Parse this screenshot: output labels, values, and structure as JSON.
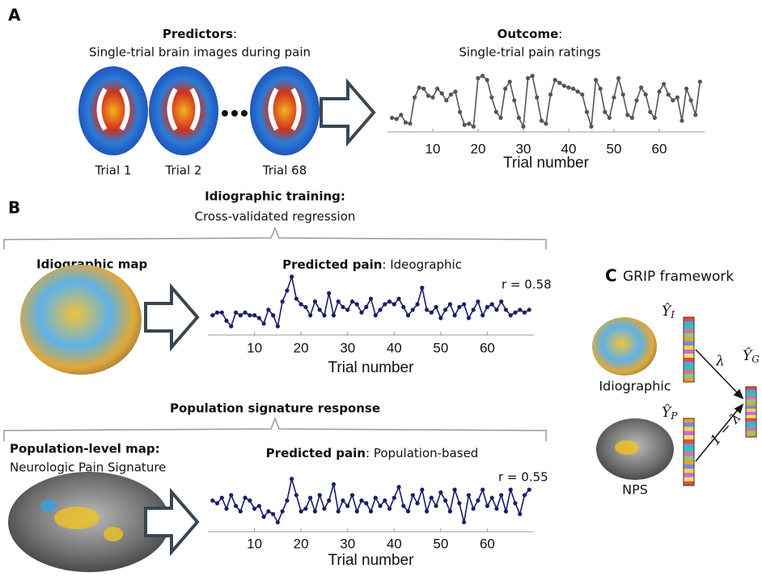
{
  "panels": {
    "a": {
      "label": "A",
      "predictors": {
        "title": "Predictors",
        "suffix": ":",
        "subtitle": "Single-trial brain images during pain"
      },
      "trials": [
        "Trial 1",
        "Trial 2",
        "Trial 68"
      ]
    },
    "b": {
      "label": "B",
      "training": {
        "title": "Idiographic training:",
        "subtitle": "Cross-validated regression"
      },
      "idiographic_map": "Idiographic map",
      "population": {
        "title": "Population signature response"
      },
      "population_map": {
        "title": "Population-level map:",
        "subtitle": "Neurologic Pain Signature"
      }
    },
    "c": {
      "label": "C",
      "title": "GRIP framework",
      "idiographic": "Idiographic",
      "nps": "NPS",
      "y_i": {
        "symbol": "Ŷ",
        "sub": "I"
      },
      "y_p": {
        "symbol": "Ŷ",
        "sub": "P"
      },
      "y_g": {
        "symbol": "Ŷ",
        "sub": "G"
      },
      "lambda": "λ",
      "one_minus_lambda": "1 − λ"
    }
  },
  "chart_data": [
    {
      "type": "line",
      "title": "Outcome",
      "title_suffix": ":",
      "subtitle": "Single-trial pain ratings",
      "x": [
        1,
        2,
        3,
        4,
        5,
        6,
        7,
        8,
        9,
        10,
        11,
        12,
        13,
        14,
        15,
        16,
        17,
        18,
        19,
        20,
        21,
        22,
        23,
        24,
        25,
        26,
        27,
        28,
        29,
        30,
        31,
        32,
        33,
        34,
        35,
        36,
        37,
        38,
        39,
        40,
        41,
        42,
        43,
        44,
        45,
        46,
        47,
        48,
        49,
        50,
        51,
        52,
        53,
        54,
        55,
        56,
        57,
        58,
        59,
        60,
        61,
        62,
        63,
        64,
        65,
        66,
        67,
        68,
        69
      ],
      "series": [
        {
          "color": "#555555",
          "values": [
            0.2,
            0.18,
            0.25,
            0.12,
            0.1,
            0.55,
            0.72,
            0.7,
            0.58,
            0.55,
            0.7,
            0.62,
            0.5,
            0.6,
            0.65,
            0.3,
            0.08,
            0.1,
            0.05,
            0.88,
            0.92,
            0.85,
            0.55,
            0.3,
            0.2,
            0.7,
            0.82,
            0.5,
            0.2,
            0.05,
            0.88,
            0.92,
            0.55,
            0.15,
            0.1,
            0.6,
            0.85,
            0.8,
            0.75,
            0.72,
            0.7,
            0.65,
            0.6,
            0.3,
            0.05,
            0.85,
            0.7,
            0.3,
            0.2,
            0.55,
            0.88,
            0.6,
            0.25,
            0.2,
            0.5,
            0.72,
            0.6,
            0.3,
            0.2,
            0.65,
            0.78,
            0.6,
            0.5,
            0.55,
            0.15,
            0.7,
            0.5,
            0.25,
            0.82
          ]
        }
      ],
      "xlim": [
        0,
        70
      ],
      "xticks": [
        10,
        20,
        30,
        40,
        50,
        60
      ],
      "ylim": [
        0,
        1
      ],
      "xlabel": "Trial number"
    },
    {
      "type": "line",
      "title": "Predicted pain",
      "title_suffix": ": Ideographic",
      "annotation": "r = 0.58",
      "x": [
        1,
        2,
        3,
        4,
        5,
        6,
        7,
        8,
        9,
        10,
        11,
        12,
        13,
        14,
        15,
        16,
        17,
        18,
        19,
        20,
        21,
        22,
        23,
        24,
        25,
        26,
        27,
        28,
        29,
        30,
        31,
        32,
        33,
        34,
        35,
        36,
        37,
        38,
        39,
        40,
        41,
        42,
        43,
        44,
        45,
        46,
        47,
        48,
        49,
        50,
        51,
        52,
        53,
        54,
        55,
        56,
        57,
        58,
        59,
        60,
        61,
        62,
        63,
        64,
        65,
        66,
        67,
        68,
        69
      ],
      "series": [
        {
          "color": "#1c1c6b",
          "values": [
            0.3,
            0.35,
            0.35,
            0.2,
            0.1,
            0.35,
            0.3,
            0.35,
            0.3,
            0.3,
            0.25,
            0.15,
            0.4,
            0.3,
            0.1,
            0.55,
            0.75,
            1.0,
            0.6,
            0.5,
            0.45,
            0.3,
            0.55,
            0.4,
            0.3,
            0.7,
            0.3,
            0.55,
            0.45,
            0.4,
            0.55,
            0.5,
            0.35,
            0.45,
            0.6,
            0.3,
            0.4,
            0.5,
            0.55,
            0.5,
            0.6,
            0.45,
            0.3,
            0.4,
            0.5,
            0.8,
            0.4,
            0.35,
            0.45,
            0.25,
            0.4,
            0.5,
            0.3,
            0.45,
            0.5,
            0.25,
            0.4,
            0.55,
            0.3,
            0.45,
            0.5,
            0.4,
            0.55,
            0.4,
            0.3,
            0.35,
            0.4,
            0.35,
            0.4
          ]
        }
      ],
      "xlim": [
        0,
        70
      ],
      "xticks": [
        10,
        20,
        30,
        40,
        50,
        60
      ],
      "ylim": [
        0,
        1
      ],
      "xlabel": "Trial number"
    },
    {
      "type": "line",
      "title": "Predicted pain",
      "title_suffix": ": Population-based",
      "annotation": "r = 0.55",
      "x": [
        1,
        2,
        3,
        4,
        5,
        6,
        7,
        8,
        9,
        10,
        11,
        12,
        13,
        14,
        15,
        16,
        17,
        18,
        19,
        20,
        21,
        22,
        23,
        24,
        25,
        26,
        27,
        28,
        29,
        30,
        31,
        32,
        33,
        34,
        35,
        36,
        37,
        38,
        39,
        40,
        41,
        42,
        43,
        44,
        45,
        46,
        47,
        48,
        49,
        50,
        51,
        52,
        53,
        54,
        55,
        56,
        57,
        58,
        59,
        60,
        61,
        62,
        63,
        64,
        65,
        66,
        67,
        68,
        69
      ],
      "series": [
        {
          "color": "#1c1c6b",
          "values": [
            0.5,
            0.45,
            0.55,
            0.35,
            0.6,
            0.4,
            0.3,
            0.55,
            0.5,
            0.35,
            0.4,
            0.2,
            0.3,
            0.25,
            0.1,
            0.3,
            0.5,
            0.9,
            0.6,
            0.3,
            0.35,
            0.55,
            0.3,
            0.6,
            0.35,
            0.5,
            0.8,
            0.3,
            0.5,
            0.4,
            0.6,
            0.3,
            0.5,
            0.45,
            0.3,
            0.55,
            0.4,
            0.5,
            0.35,
            0.55,
            0.75,
            0.4,
            0.3,
            0.6,
            0.45,
            0.7,
            0.3,
            0.55,
            0.4,
            0.65,
            0.5,
            0.3,
            0.7,
            0.45,
            0.1,
            0.6,
            0.35,
            0.5,
            0.7,
            0.4,
            0.55,
            0.35,
            0.6,
            0.3,
            0.7,
            0.45,
            0.25,
            0.6,
            0.7
          ]
        }
      ],
      "xlim": [
        0,
        70
      ],
      "xticks": [
        10,
        20,
        30,
        40,
        50,
        60
      ],
      "ylim": [
        0,
        1
      ],
      "xlabel": "Trial number"
    }
  ]
}
